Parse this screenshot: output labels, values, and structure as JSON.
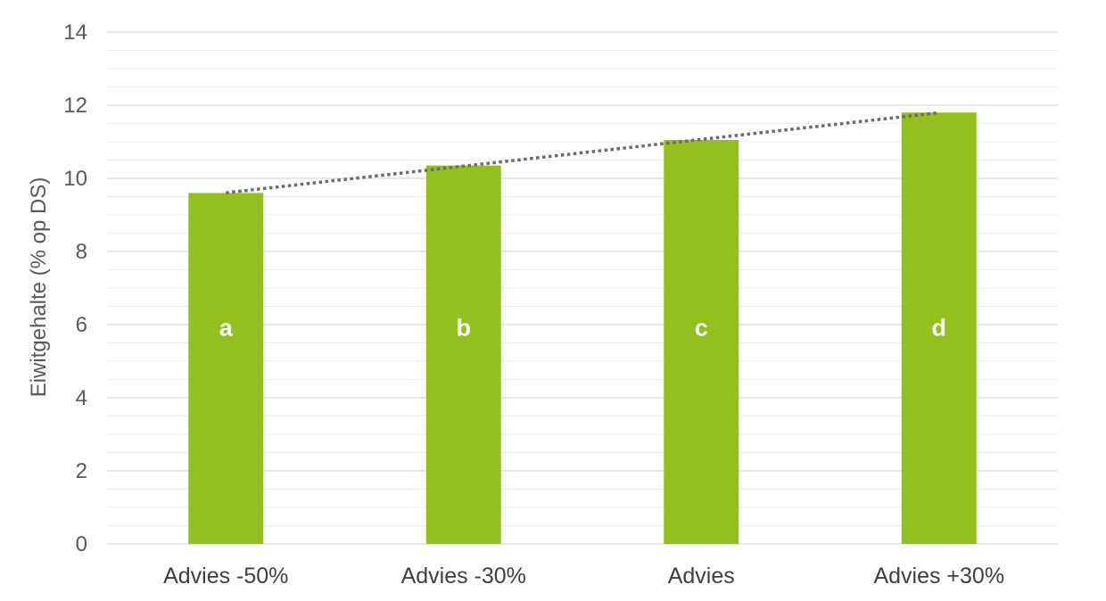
{
  "chart_data": {
    "type": "bar",
    "title": "",
    "xlabel": "",
    "ylabel": "Eiwitgehalte (% op DS)",
    "ylim": [
      0,
      14
    ],
    "yticks": [
      0,
      2,
      4,
      6,
      8,
      10,
      12,
      14
    ],
    "categories": [
      "Advies -50%",
      "Advies -30%",
      "Advies",
      "Advies +30%"
    ],
    "values": [
      9.6,
      10.35,
      11.05,
      11.8
    ],
    "bar_labels": [
      "a",
      "b",
      "c",
      "d"
    ],
    "trendline": {
      "style": "dotted",
      "type": "linear"
    },
    "grid": true,
    "legend": "none",
    "colors": {
      "bar": "#93c01f",
      "bar_label": "#ffffff",
      "trendline": "#6b6b6b",
      "gridline_major": "#d9d9d9",
      "gridline_minor": "#ececec",
      "tick_label": "#595959",
      "axis_label": "#595959",
      "category_label": "#404040"
    }
  }
}
